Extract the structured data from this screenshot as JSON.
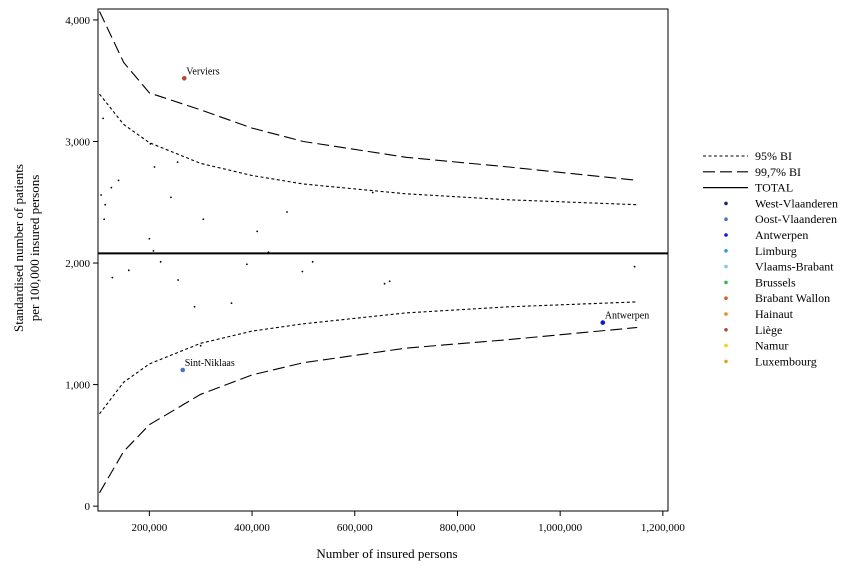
{
  "chart_data": {
    "type": "scatter",
    "xlabel": "Number of insured persons",
    "ylabel": "Standardised number of patients per 100,000 insured persons",
    "ylabel_lines": [
      "Standardised number of patients",
      "per 100,000 insured persons"
    ],
    "xlim": [
      100000,
      1210000
    ],
    "ylim": [
      -40,
      4090
    ],
    "xticks": [
      200000,
      400000,
      600000,
      800000,
      1000000,
      1200000
    ],
    "xtick_labels": [
      "200,000",
      "400,000",
      "600,000",
      "800,000",
      "1,000,000",
      "1,200,000"
    ],
    "yticks": [
      0,
      1000,
      2000,
      3000,
      4000
    ],
    "ytick_labels": [
      "0",
      "1,000",
      "2,000",
      "3,000",
      "4,000"
    ],
    "grid": false,
    "legend_position": "right",
    "total": 2080,
    "limits": [
      {
        "name": "95% BI",
        "style": "dotted",
        "x": [
          103000,
          150000,
          200000,
          300000,
          400000,
          500000,
          700000,
          900000,
          1150000
        ],
        "upper": [
          3390,
          3140,
          2990,
          2820,
          2720,
          2650,
          2570,
          2520,
          2480
        ],
        "lower": [
          760,
          1020,
          1170,
          1340,
          1440,
          1500,
          1590,
          1640,
          1680
        ]
      },
      {
        "name": "99,7% BI",
        "style": "dashed",
        "x": [
          103000,
          150000,
          200000,
          300000,
          400000,
          500000,
          700000,
          900000,
          1150000
        ],
        "upper": [
          4070,
          3650,
          3400,
          3260,
          3110,
          3000,
          2870,
          2790,
          2680
        ],
        "lower": [
          110,
          450,
          670,
          920,
          1080,
          1180,
          1300,
          1370,
          1470
        ]
      }
    ],
    "total_label": "TOTAL",
    "provinces": [
      {
        "name": "West-Vlaanderen",
        "color": "#1a237e"
      },
      {
        "name": "Oost-Vlaanderen",
        "color": "#4a6fd6"
      },
      {
        "name": "Antwerpen",
        "color": "#0a12e8"
      },
      {
        "name": "Limburg",
        "color": "#2aa0d8"
      },
      {
        "name": "Vlaams-Brabant",
        "color": "#7ec8e3"
      },
      {
        "name": "Brussels",
        "color": "#3cb44b"
      },
      {
        "name": "Brabant Wallon",
        "color": "#d2622a"
      },
      {
        "name": "Hainaut",
        "color": "#f08a24"
      },
      {
        "name": "Liège",
        "color": "#b04a3a"
      },
      {
        "name": "Namur",
        "color": "#f2d21a"
      },
      {
        "name": "Luxembourg",
        "color": "#e8a020"
      }
    ],
    "points": [
      {
        "x": 106000,
        "y": 2560
      },
      {
        "x": 110000,
        "y": 3190
      },
      {
        "x": 112000,
        "y": 2360
      },
      {
        "x": 114000,
        "y": 2480
      },
      {
        "x": 126000,
        "y": 2620
      },
      {
        "x": 128000,
        "y": 1880
      },
      {
        "x": 140000,
        "y": 2680
      },
      {
        "x": 160000,
        "y": 1940
      },
      {
        "x": 200000,
        "y": 2200
      },
      {
        "x": 202000,
        "y": 2980
      },
      {
        "x": 208000,
        "y": 2100
      },
      {
        "x": 210000,
        "y": 2790
      },
      {
        "x": 222000,
        "y": 2010
      },
      {
        "x": 242000,
        "y": 2540
      },
      {
        "x": 255000,
        "y": 2830
      },
      {
        "x": 256000,
        "y": 1860
      },
      {
        "x": 288000,
        "y": 1640
      },
      {
        "x": 300000,
        "y": 1320
      },
      {
        "x": 305000,
        "y": 2360
      },
      {
        "x": 360000,
        "y": 1670
      },
      {
        "x": 390000,
        "y": 1990
      },
      {
        "x": 410000,
        "y": 2260
      },
      {
        "x": 432000,
        "y": 2090
      },
      {
        "x": 468000,
        "y": 2420
      },
      {
        "x": 498000,
        "y": 1930
      },
      {
        "x": 518000,
        "y": 2010
      },
      {
        "x": 635000,
        "y": 2580
      },
      {
        "x": 658000,
        "y": 1830
      },
      {
        "x": 668000,
        "y": 1850
      },
      {
        "x": 1145000,
        "y": 1970
      },
      {
        "x": 268000,
        "y": 3520,
        "label": "Verviers",
        "province": "Liège"
      },
      {
        "x": 265000,
        "y": 1120,
        "label": "Sint-Niklaas",
        "province": "Oost-Vlaanderen"
      },
      {
        "x": 1083000,
        "y": 1510,
        "label": "Antwerpen",
        "province": "Antwerpen"
      }
    ]
  }
}
